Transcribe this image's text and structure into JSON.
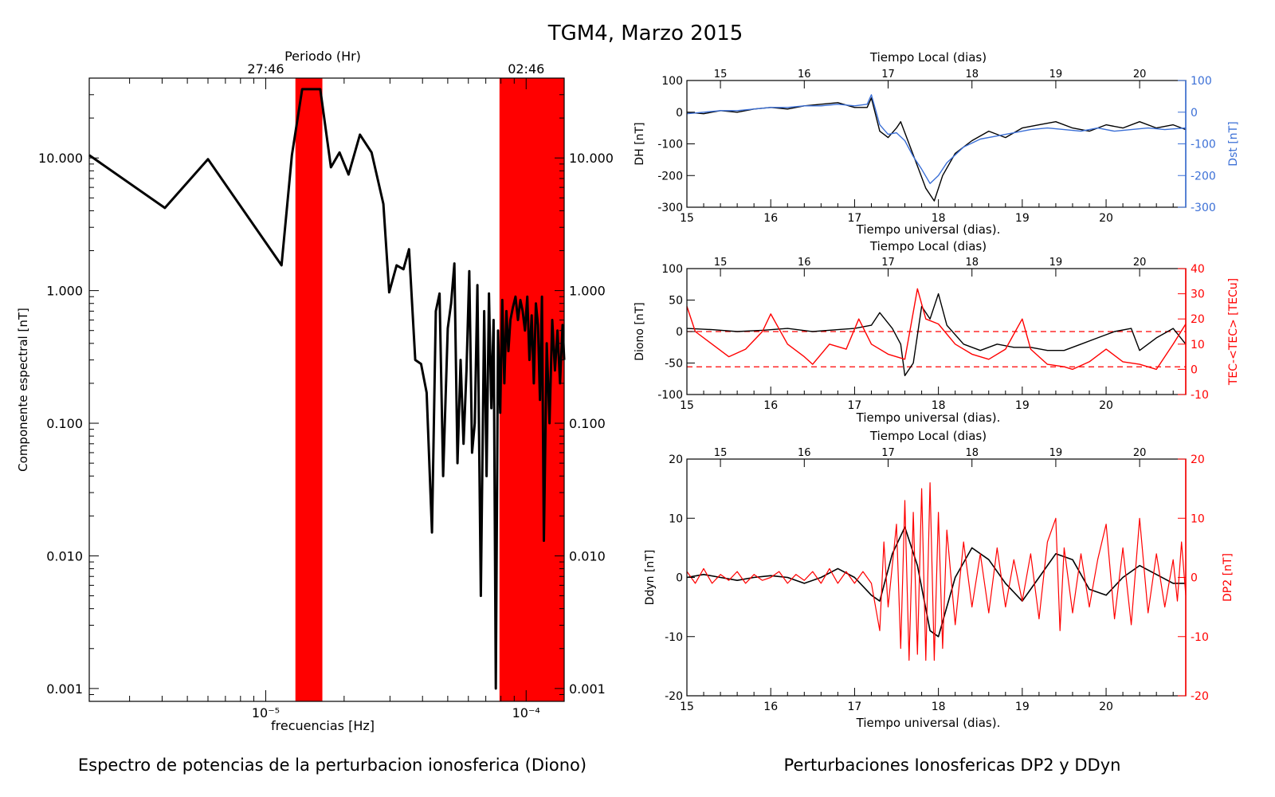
{
  "figure": {
    "title": "TGM4, Marzo 2015",
    "caption_left": "Espectro de potencias de la perturbacion ionosferica (Diono)",
    "caption_right": "Perturbaciones Ionosfericas DP2 y DDyn"
  },
  "chart_data": [
    {
      "id": "spectrum",
      "type": "line",
      "xscale": "log",
      "yscale": "log",
      "xlabel": "frecuencias [Hz]",
      "ylabel": "Componente espectral [nT]",
      "top_axis_label": "Periodo (Hr)",
      "top_tick_labels": [
        "27:46",
        "02:46"
      ],
      "top_tick_x": [
        1e-05,
        0.0001
      ],
      "x_tick_labels": [
        "10⁻⁵",
        "10⁻⁴"
      ],
      "y_tick_labels": [
        "10.000",
        "1.000",
        "0.100",
        "0.010",
        "0.001"
      ],
      "xlim": [
        2.1e-06,
        0.00014
      ],
      "ylim": [
        0.0008,
        40
      ],
      "shaded_bands": [
        {
          "x": [
            1.3e-05,
            1.65e-05
          ],
          "color": "#ff0000"
        },
        {
          "x": [
            7.9e-05,
            0.00014
          ],
          "color": "#ff0000"
        }
      ],
      "series_color": "#000000",
      "x": [
        2.1e-06,
        4.1e-06,
        6e-06,
        1.15e-05,
        1.26e-05,
        1.38e-05,
        1.62e-05,
        1.78e-05,
        1.92e-05,
        2.08e-05,
        2.3e-05,
        2.55e-05,
        2.83e-05,
        2.98e-05,
        3.18e-05,
        3.38e-05,
        3.55e-05,
        3.75e-05,
        3.95e-05,
        4.15e-05,
        4.35e-05,
        4.5e-05,
        4.65e-05,
        4.8e-05,
        5e-05,
        5.15e-05,
        5.3e-05,
        5.45e-05,
        5.6e-05,
        5.75e-05,
        5.9e-05,
        6.05e-05,
        6.2e-05,
        6.35e-05,
        6.5e-05,
        6.7e-05,
        6.9e-05,
        7.05e-05,
        7.2e-05,
        7.35e-05,
        7.5e-05,
        7.65e-05,
        7.8e-05,
        7.95e-05,
        8.1e-05,
        8.25e-05,
        8.4e-05,
        8.55e-05,
        8.7e-05,
        8.9e-05,
        9.1e-05,
        9.3e-05,
        9.5e-05,
        9.7e-05,
        9.9e-05,
        0.000101,
        0.000103,
        0.000105,
        0.000107,
        0.000109,
        0.000111,
        0.000113,
        0.000115,
        0.000117,
        0.00012,
        0.000123,
        0.000126,
        0.000129,
        0.000132,
        0.000135,
        0.000138,
        0.00014
      ],
      "y": [
        10.5,
        4.2,
        9.8,
        1.55,
        10.5,
        33,
        33,
        8.5,
        11,
        7.5,
        15,
        11,
        4.5,
        0.97,
        1.55,
        1.45,
        2.05,
        0.3,
        0.28,
        0.17,
        0.015,
        0.7,
        0.95,
        0.04,
        0.52,
        0.8,
        1.6,
        0.05,
        0.3,
        0.07,
        0.25,
        1.4,
        0.06,
        0.1,
        1.1,
        0.005,
        0.7,
        0.04,
        0.95,
        0.13,
        0.6,
        0.001,
        0.5,
        0.12,
        0.85,
        0.2,
        0.7,
        0.35,
        0.6,
        0.75,
        0.9,
        0.6,
        0.85,
        0.7,
        0.5,
        0.9,
        0.3,
        0.65,
        0.2,
        0.8,
        0.55,
        0.15,
        0.9,
        0.013,
        0.4,
        0.1,
        0.6,
        0.25,
        0.5,
        0.2,
        0.55,
        0.3
      ]
    },
    {
      "id": "dh_dst",
      "type": "line",
      "xlabel": "Tiempo universal (dias).",
      "top_axis_label": "Tiempo Local (dias)",
      "top_ticks": [
        15,
        16,
        17,
        18,
        19,
        20
      ],
      "top_ticks_at_ut": [
        15.4,
        16.4,
        17.4,
        18.4,
        19.4,
        20.4
      ],
      "x_ticks": [
        15,
        16,
        17,
        18,
        19,
        20
      ],
      "xlim": [
        15,
        20.95
      ],
      "ylabel": "DH [nT]",
      "ylim": [
        -300,
        100
      ],
      "y_ticks": [
        100,
        0,
        -100,
        -200,
        -300
      ],
      "y2label": "Dst [nT]",
      "y2lim": [
        -300,
        100
      ],
      "y2_ticks": [
        100,
        0,
        -100,
        -200,
        -300
      ],
      "series": [
        {
          "name": "DH",
          "color": "#000000",
          "x": [
            15.0,
            15.2,
            15.4,
            15.6,
            15.8,
            16.0,
            16.2,
            16.4,
            16.6,
            16.8,
            17.0,
            17.15,
            17.2,
            17.3,
            17.4,
            17.5,
            17.55,
            17.65,
            17.75,
            17.85,
            17.95,
            18.05,
            18.2,
            18.4,
            18.6,
            18.8,
            19.0,
            19.2,
            19.4,
            19.6,
            19.8,
            20.0,
            20.2,
            20.4,
            20.6,
            20.8,
            20.95
          ],
          "y": [
            0,
            -5,
            5,
            0,
            10,
            15,
            10,
            20,
            25,
            30,
            15,
            15,
            45,
            -60,
            -80,
            -50,
            -30,
            -100,
            -170,
            -240,
            -280,
            -200,
            -130,
            -90,
            -60,
            -80,
            -50,
            -40,
            -30,
            -50,
            -60,
            -40,
            -50,
            -30,
            -50,
            -40,
            -55
          ]
        },
        {
          "name": "Dst",
          "color": "#3b6fd6",
          "x": [
            15.0,
            15.2,
            15.4,
            15.6,
            15.8,
            16.0,
            16.2,
            16.4,
            16.6,
            16.8,
            17.0,
            17.15,
            17.2,
            17.3,
            17.4,
            17.5,
            17.6,
            17.7,
            17.8,
            17.9,
            18.0,
            18.1,
            18.3,
            18.5,
            18.7,
            18.9,
            19.1,
            19.3,
            19.5,
            19.7,
            19.9,
            20.1,
            20.3,
            20.5,
            20.7,
            20.95
          ],
          "y": [
            -5,
            0,
            5,
            5,
            10,
            15,
            15,
            20,
            20,
            25,
            20,
            25,
            55,
            -40,
            -70,
            -65,
            -90,
            -140,
            -180,
            -225,
            -200,
            -160,
            -110,
            -85,
            -75,
            -65,
            -55,
            -50,
            -55,
            -60,
            -50,
            -60,
            -55,
            -50,
            -55,
            -50
          ]
        }
      ]
    },
    {
      "id": "diono_tec",
      "type": "line",
      "xlabel": "Tiempo universal (dias).",
      "top_axis_label": "Tiempo Local (dias)",
      "top_ticks": [
        15,
        16,
        17,
        18,
        19,
        20
      ],
      "top_ticks_at_ut": [
        15.4,
        16.4,
        17.4,
        18.4,
        19.4,
        20.4
      ],
      "x_ticks": [
        15,
        16,
        17,
        18,
        19,
        20
      ],
      "xlim": [
        15,
        20.95
      ],
      "ylabel": "Diono [nT]",
      "ylim": [
        -100,
        100
      ],
      "y_ticks": [
        100,
        50,
        0,
        -50,
        -100
      ],
      "y2label": "TEC-<TEC> [TECu]",
      "y2lim": [
        -10,
        40
      ],
      "y2_ticks": [
        40,
        30,
        20,
        10,
        0,
        -10
      ],
      "reference_lines_y2": [
        15,
        1
      ],
      "series": [
        {
          "name": "Diono",
          "color": "#000000",
          "x": [
            15.0,
            15.3,
            15.6,
            15.9,
            16.2,
            16.5,
            16.8,
            17.0,
            17.2,
            17.3,
            17.45,
            17.55,
            17.6,
            17.7,
            17.8,
            17.9,
            18.0,
            18.1,
            18.3,
            18.5,
            18.7,
            18.9,
            19.1,
            19.3,
            19.5,
            19.7,
            19.9,
            20.1,
            20.3,
            20.4,
            20.6,
            20.8,
            20.95
          ],
          "y": [
            5,
            3,
            0,
            2,
            5,
            0,
            3,
            5,
            10,
            30,
            5,
            -20,
            -70,
            -50,
            40,
            20,
            60,
            10,
            -20,
            -30,
            -20,
            -25,
            -25,
            -30,
            -30,
            -20,
            -10,
            0,
            5,
            -30,
            -10,
            5,
            -20
          ]
        },
        {
          "name": "TEC-<TEC>",
          "color": "#ff0000",
          "axis": "y2",
          "x": [
            15.0,
            15.1,
            15.3,
            15.5,
            15.7,
            15.9,
            16.0,
            16.2,
            16.4,
            16.5,
            16.7,
            16.9,
            17.05,
            17.2,
            17.4,
            17.6,
            17.75,
            17.85,
            18.0,
            18.2,
            18.4,
            18.6,
            18.8,
            19.0,
            19.1,
            19.3,
            19.5,
            19.6,
            19.8,
            20.0,
            20.2,
            20.4,
            20.6,
            20.8,
            20.95
          ],
          "y": [
            25,
            15,
            10,
            5,
            8,
            15,
            22,
            10,
            5,
            2,
            10,
            8,
            20,
            10,
            6,
            4,
            32,
            20,
            18,
            10,
            6,
            4,
            8,
            20,
            8,
            2,
            1,
            0,
            3,
            8,
            3,
            2,
            0,
            10,
            18
          ]
        }
      ]
    },
    {
      "id": "ddyn_dp2",
      "type": "line",
      "xlabel": "Tiempo universal (dias).",
      "top_axis_label": "Tiempo Local (dias)",
      "top_ticks": [
        15,
        16,
        17,
        18,
        19,
        20
      ],
      "top_ticks_at_ut": [
        15.4,
        16.4,
        17.4,
        18.4,
        19.4,
        20.4
      ],
      "x_ticks": [
        15,
        16,
        17,
        18,
        19,
        20
      ],
      "xlim": [
        15,
        20.95
      ],
      "ylabel": "Ddyn [nT]",
      "ylim": [
        -20,
        20
      ],
      "y_ticks": [
        20,
        10,
        0,
        -10,
        -20
      ],
      "y2label": "DP2 [nT]",
      "y2lim": [
        -20,
        20
      ],
      "y2_ticks": [
        20,
        10,
        0,
        -10,
        -20
      ],
      "series": [
        {
          "name": "Ddyn",
          "color": "#000000",
          "x": [
            15.0,
            15.2,
            15.4,
            15.6,
            15.8,
            16.0,
            16.2,
            16.4,
            16.6,
            16.8,
            17.0,
            17.2,
            17.3,
            17.45,
            17.6,
            17.75,
            17.9,
            18.0,
            18.2,
            18.4,
            18.6,
            18.8,
            19.0,
            19.2,
            19.4,
            19.6,
            19.8,
            20.0,
            20.2,
            20.4,
            20.6,
            20.8,
            20.95
          ],
          "y": [
            0,
            0.5,
            0,
            -0.5,
            0,
            0.3,
            0,
            -1,
            0,
            1.5,
            0,
            -3,
            -4,
            4,
            8.5,
            2,
            -9,
            -10,
            0,
            5,
            3,
            -1,
            -4,
            0,
            4,
            3,
            -2,
            -3,
            0,
            2,
            0.5,
            -1,
            -1
          ]
        },
        {
          "name": "DP2",
          "color": "#ff0000",
          "x": [
            15.0,
            15.1,
            15.2,
            15.3,
            15.4,
            15.5,
            15.6,
            15.7,
            15.8,
            15.9,
            16.0,
            16.1,
            16.2,
            16.3,
            16.4,
            16.5,
            16.6,
            16.7,
            16.8,
            16.9,
            17.0,
            17.1,
            17.2,
            17.3,
            17.35,
            17.4,
            17.5,
            17.55,
            17.6,
            17.65,
            17.7,
            17.75,
            17.8,
            17.85,
            17.9,
            17.95,
            18.0,
            18.05,
            18.1,
            18.2,
            18.3,
            18.4,
            18.5,
            18.6,
            18.7,
            18.8,
            18.9,
            19.0,
            19.1,
            19.2,
            19.3,
            19.4,
            19.45,
            19.5,
            19.6,
            19.7,
            19.8,
            19.9,
            20.0,
            20.1,
            20.2,
            20.3,
            20.4,
            20.5,
            20.6,
            20.7,
            20.8,
            20.85,
            20.9,
            20.95
          ],
          "y": [
            1,
            -1,
            1.5,
            -1,
            0.5,
            -0.5,
            1,
            -1,
            0.5,
            -0.5,
            0,
            1,
            -1,
            0.5,
            -0.5,
            1,
            -1,
            1.5,
            -1,
            1,
            -1,
            1,
            -1,
            -9,
            6,
            -5,
            9,
            -12,
            13,
            -14,
            11,
            -13,
            15,
            -14,
            16,
            -14,
            11,
            -12,
            8,
            -8,
            6,
            -5,
            4,
            -6,
            5,
            -5,
            3,
            -4,
            4,
            -7,
            6,
            10,
            -9,
            5,
            -6,
            4,
            -5,
            3,
            9,
            -7,
            5,
            -8,
            10,
            -6,
            4,
            -5,
            3,
            -4,
            6,
            -3
          ]
        }
      ]
    }
  ]
}
